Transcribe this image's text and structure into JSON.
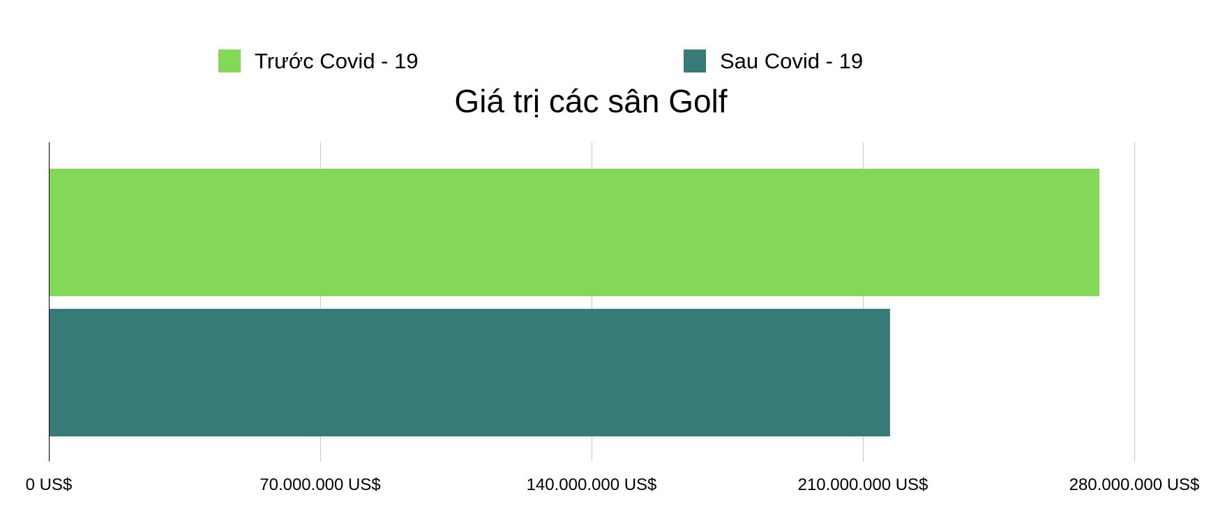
{
  "chart_data": {
    "type": "bar",
    "orientation": "horizontal",
    "title": "Giá trị các sân Golf",
    "xlabel": "",
    "ylabel": "",
    "categories": [
      ""
    ],
    "series": [
      {
        "name": "Trước Covid - 19",
        "values": [
          271000000
        ],
        "color": "#84d858"
      },
      {
        "name": "Sau Covid - 19",
        "values": [
          217000000
        ],
        "color": "#367b77"
      }
    ],
    "xlim": [
      0,
      280000000
    ],
    "ticks": [
      0,
      70000000,
      140000000,
      210000000,
      280000000
    ],
    "tick_labels": [
      "0 US$",
      "70.000.000 US$",
      "140.000.000 US$",
      "210.000.000 US$",
      "280.000.000 US$"
    ],
    "grid": true,
    "legend_position": "top"
  },
  "colors": {
    "gridline": "#c8c8c8",
    "axis": "#000000",
    "background": "#ffffff"
  }
}
